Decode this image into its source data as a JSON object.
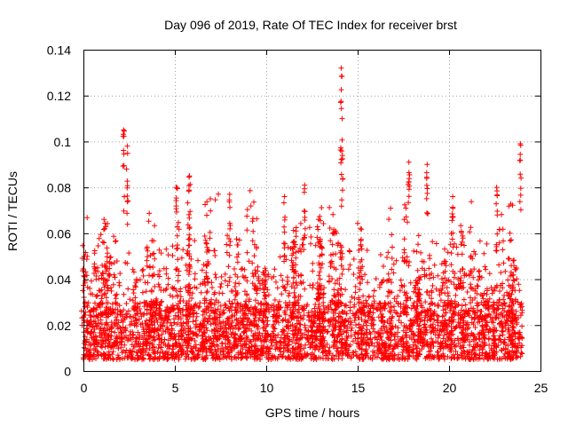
{
  "chart_data": {
    "type": "scatter",
    "title": "Day 096 of 2019, Rate Of TEC Index for receiver brst",
    "xlabel": "GPS time / hours",
    "ylabel": "ROTI / TECUs",
    "xlim": [
      0,
      25
    ],
    "ylim": [
      0,
      0.14
    ],
    "xticks": [
      0,
      5,
      10,
      15,
      20,
      25
    ],
    "xtick_labels": [
      "0",
      "5",
      "10",
      "15",
      "20",
      "25"
    ],
    "yticks": [
      0,
      0.02,
      0.04,
      0.06,
      0.08,
      0.1,
      0.12,
      0.14
    ],
    "ytick_labels": [
      "0",
      "0.02",
      "0.04",
      "0.06",
      "0.08",
      "0.1",
      "0.12",
      "0.14"
    ],
    "grid": true,
    "marker": "+",
    "color": "#ff0000",
    "series": [
      {
        "name": "brst",
        "x_range": [
          0,
          24
        ],
        "baseline_band": [
          0.005,
          0.03
        ],
        "peaks": [
          {
            "x": 2.2,
            "y": 0.105
          },
          {
            "x": 2.4,
            "y": 0.098
          },
          {
            "x": 5.1,
            "y": 0.08
          },
          {
            "x": 5.8,
            "y": 0.085
          },
          {
            "x": 8.0,
            "y": 0.077
          },
          {
            "x": 11.0,
            "y": 0.076
          },
          {
            "x": 12.1,
            "y": 0.081
          },
          {
            "x": 14.1,
            "y": 0.132
          },
          {
            "x": 14.15,
            "y": 0.11
          },
          {
            "x": 17.8,
            "y": 0.091
          },
          {
            "x": 18.8,
            "y": 0.09
          },
          {
            "x": 20.2,
            "y": 0.076
          },
          {
            "x": 22.6,
            "y": 0.08
          },
          {
            "x": 23.9,
            "y": 0.099
          }
        ]
      }
    ]
  }
}
